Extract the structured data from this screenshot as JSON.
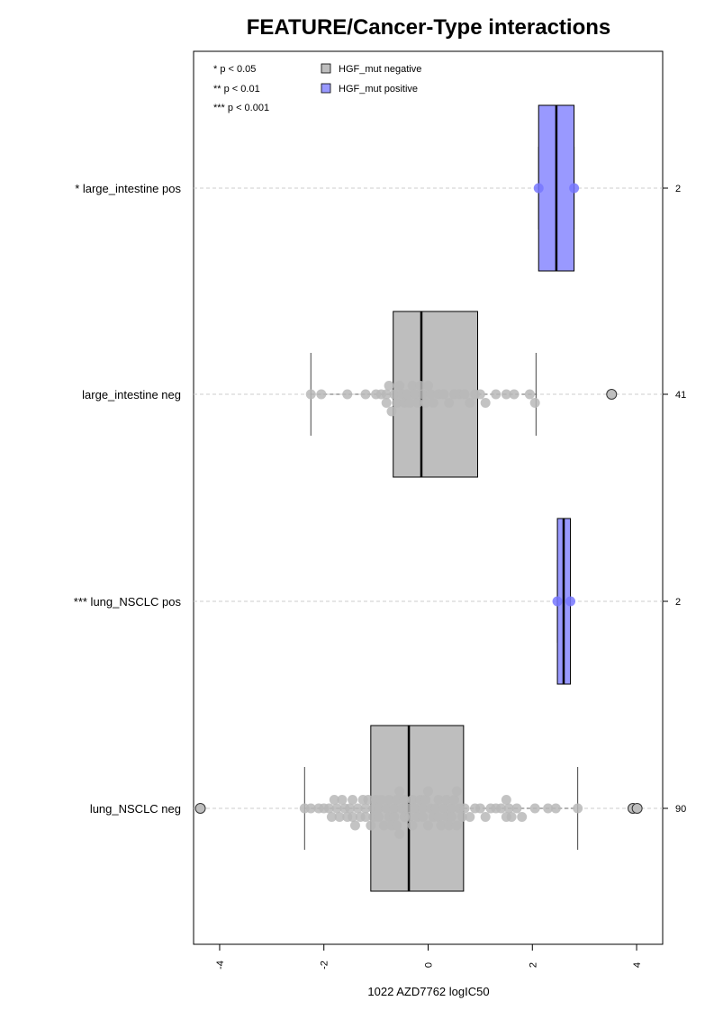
{
  "chart_data": {
    "type": "boxplot",
    "title": "FEATURE/Cancer-Type interactions",
    "xlabel": "1022 AZD7762 logIC50",
    "xlim": [
      -4.5,
      4.5
    ],
    "x_ticks": [
      -4,
      -2,
      0,
      2,
      4
    ],
    "x_tick_labels": [
      "-4",
      "-2",
      "0",
      "2",
      "4"
    ],
    "significance_legend": [
      "* p < 0.05",
      "** p < 0.01",
      "*** p < 0.001"
    ],
    "legend": [
      {
        "label": "HGF_mut negative",
        "color": "#bebebe"
      },
      {
        "label": "HGF_mut positive",
        "color": "#9999ff"
      }
    ],
    "point_colors": {
      "negative": "#b8b8b8",
      "positive": "#7777ff"
    },
    "series": [
      {
        "label": "* large_intestine pos",
        "n": "2",
        "group": "positive",
        "box": {
          "whisker_low": 2.12,
          "q1": 2.12,
          "median": 2.46,
          "q3": 2.8,
          "whisker_high": 2.8
        },
        "outliers": [],
        "points": [
          2.12,
          2.8
        ]
      },
      {
        "label": "large_intestine neg",
        "n": "41",
        "group": "negative",
        "box": {
          "whisker_low": -2.25,
          "q1": -0.67,
          "median": -0.13,
          "q3": 0.95,
          "whisker_high": 2.07
        },
        "outliers": [
          3.52
        ],
        "points": [
          -2.25,
          -2.05,
          -1.55,
          -1.2,
          -1.0,
          -0.9,
          -0.8,
          -0.8,
          -0.75,
          -0.7,
          -0.65,
          -0.6,
          -0.55,
          -0.5,
          -0.45,
          -0.4,
          -0.35,
          -0.3,
          -0.25,
          -0.2,
          -0.15,
          -0.1,
          -0.05,
          0.0,
          0.05,
          0.1,
          0.2,
          0.3,
          0.4,
          0.5,
          0.6,
          0.7,
          0.8,
          0.9,
          1.0,
          1.1,
          1.3,
          1.5,
          1.65,
          1.95,
          2.05
        ]
      },
      {
        "label": "*** lung_NSCLC pos",
        "n": "2",
        "group": "positive",
        "box": {
          "whisker_low": 2.48,
          "q1": 2.48,
          "median": 2.6,
          "q3": 2.73,
          "whisker_high": 2.73
        },
        "outliers": [],
        "points": [
          2.48,
          2.73
        ]
      },
      {
        "label": "lung_NSCLC neg",
        "n": "90",
        "group": "negative",
        "box": {
          "whisker_low": -2.37,
          "q1": -1.1,
          "median": -0.37,
          "q3": 0.68,
          "whisker_high": 2.87
        },
        "outliers": [
          -4.37,
          3.93,
          4.01
        ],
        "points": [
          -2.37,
          -2.25,
          -2.1,
          -2.0,
          -1.9,
          -1.85,
          -1.8,
          -1.75,
          -1.7,
          -1.65,
          -1.6,
          -1.55,
          -1.5,
          -1.45,
          -1.4,
          -1.35,
          -1.3,
          -1.25,
          -1.2,
          -1.15,
          -1.1,
          -1.05,
          -1.0,
          -0.95,
          -0.9,
          -0.85,
          -0.8,
          -0.75,
          -0.7,
          -0.65,
          -0.6,
          -0.55,
          -0.5,
          -0.45,
          -0.4,
          -0.35,
          -0.3,
          -0.25,
          -0.2,
          -0.15,
          -0.1,
          -0.05,
          0.0,
          0.05,
          0.1,
          0.15,
          0.2,
          0.25,
          0.3,
          0.35,
          0.4,
          0.45,
          0.5,
          0.55,
          0.6,
          0.65,
          0.7,
          0.8,
          0.9,
          1.0,
          1.1,
          1.2,
          1.3,
          1.4,
          1.5,
          1.6,
          1.7,
          1.8,
          2.05,
          2.3,
          2.45,
          2.87,
          -1.45,
          -0.6,
          -0.3,
          -0.1,
          0.35,
          0.55,
          -0.95,
          -1.2,
          -0.55,
          0.0,
          0.2,
          0.45,
          -0.75,
          -1.05,
          1.5,
          1.55,
          -0.45,
          -0.65
        ]
      }
    ]
  }
}
